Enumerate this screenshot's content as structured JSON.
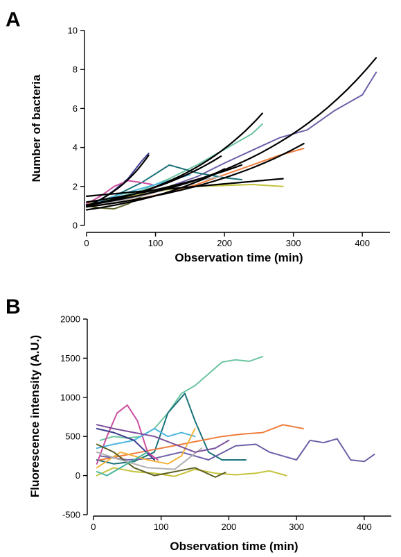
{
  "colors": [
    "#6d5fa8",
    "#f07d3c",
    "#6cc4a0",
    "#19727a",
    "#c5c23a",
    "#3d3d8f",
    "#cc4fa0",
    "#4cb7e0",
    "#f2b33c",
    "#5c5f22",
    "#b0b0b0",
    "#7b4f9c",
    "#46b59b",
    "#8a8f2f"
  ],
  "chart_data": [
    {
      "type": "line",
      "panel_label": "A",
      "xlabel": "Observation time (min)",
      "ylabel": "Number of bacteria",
      "xlim": [
        0,
        440
      ],
      "ylim": [
        0,
        10
      ],
      "xticks": [
        "0",
        "100",
        "200",
        "300",
        "400"
      ],
      "yticks": [
        "0",
        "2",
        "4",
        "6",
        "8",
        "10"
      ],
      "series": [
        {
          "color": "#6d5fa8",
          "x": [
            0,
            40,
            80,
            120,
            160,
            200,
            240,
            280,
            320,
            360,
            400,
            420
          ],
          "y": [
            1.0,
            1.25,
            1.6,
            2.0,
            2.5,
            3.2,
            3.85,
            4.5,
            4.9,
            5.9,
            6.7,
            7.85
          ]
        },
        {
          "color": "#f07d3c",
          "x": [
            0,
            40,
            80,
            120,
            160,
            200,
            240,
            280,
            315
          ],
          "y": [
            0.95,
            1.15,
            1.4,
            1.7,
            2.1,
            2.6,
            3.1,
            3.6,
            3.95
          ]
        },
        {
          "color": "#6cc4a0",
          "x": [
            0,
            40,
            80,
            120,
            160,
            200,
            240,
            255
          ],
          "y": [
            1.1,
            1.4,
            1.8,
            2.4,
            3.1,
            3.9,
            4.7,
            5.2
          ]
        },
        {
          "color": "#19727a",
          "x": [
            0,
            40,
            80,
            120,
            160,
            200,
            225
          ],
          "y": [
            1.05,
            1.5,
            2.2,
            3.1,
            2.7,
            2.45,
            2.35
          ]
        },
        {
          "color": "#c5c23a",
          "x": [
            0,
            40,
            80,
            120,
            160,
            200,
            240,
            285
          ],
          "y": [
            1.1,
            1.3,
            1.6,
            1.85,
            2.0,
            2.05,
            2.1,
            2.0
          ]
        },
        {
          "color": "#3d3d8f",
          "x": [
            0,
            20,
            40,
            60,
            80,
            90
          ],
          "y": [
            1.0,
            1.3,
            1.8,
            2.4,
            3.3,
            3.7
          ]
        },
        {
          "color": "#cc4fa0",
          "x": [
            0,
            20,
            40,
            60,
            80,
            95
          ],
          "y": [
            1.1,
            1.5,
            2.0,
            2.3,
            2.2,
            2.1
          ]
        },
        {
          "color": "#4cb7e0",
          "x": [
            0,
            40,
            80,
            120,
            150
          ],
          "y": [
            1.0,
            1.5,
            1.9,
            2.3,
            2.6
          ]
        },
        {
          "color": "#5c5f22",
          "x": [
            0,
            20,
            40,
            60,
            80,
            100,
            130
          ],
          "y": [
            1.0,
            0.9,
            0.85,
            1.1,
            1.5,
            1.8,
            2.1
          ]
        },
        {
          "color": "#b0b0b0",
          "x": [
            0,
            40,
            80,
            120,
            160,
            195
          ],
          "y": [
            1.0,
            1.2,
            1.5,
            1.9,
            2.3,
            2.5
          ]
        }
      ],
      "fits": [
        {
          "x": [
            0,
            420
          ],
          "y0": 1.05,
          "y1": 8.6,
          "shape": "exp"
        },
        {
          "x": [
            0,
            255
          ],
          "y0": 1.0,
          "y1": 5.75,
          "shape": "exp"
        },
        {
          "x": [
            0,
            315
          ],
          "y0": 0.95,
          "y1": 4.2,
          "shape": "exp"
        },
        {
          "x": [
            0,
            285
          ],
          "y0": 1.5,
          "y1": 2.4,
          "shape": "lin"
        },
        {
          "x": [
            0,
            225
          ],
          "y0": 1.2,
          "y1": 3.1,
          "shape": "exp"
        },
        {
          "x": [
            0,
            195
          ],
          "y0": 1.05,
          "y1": 3.55,
          "shape": "exp"
        },
        {
          "x": [
            0,
            90
          ],
          "y0": 1.0,
          "y1": 3.6,
          "shape": "exp"
        },
        {
          "x": [
            0,
            200
          ],
          "y0": 0.8,
          "y1": 2.9,
          "shape": "exp"
        }
      ]
    },
    {
      "type": "line",
      "panel_label": "B",
      "xlabel": "Observation time (min)",
      "ylabel": "Fluorescence intensity (A.U.)",
      "xlim": [
        -5,
        440
      ],
      "ylim": [
        -500,
        2000
      ],
      "xticks": [
        "0",
        "100",
        "200",
        "300",
        "400"
      ],
      "yticks": [
        "-500",
        "0",
        "500",
        "1000",
        "1500",
        "2000"
      ],
      "series": [
        {
          "color": "#6cc4a0",
          "x": [
            10,
            30,
            50,
            70,
            90,
            110,
            130,
            150,
            170,
            190,
            210,
            230,
            250
          ],
          "y": [
            450,
            500,
            480,
            500,
            600,
            800,
            1050,
            1150,
            1300,
            1450,
            1480,
            1460,
            1520
          ]
        },
        {
          "color": "#19727a",
          "x": [
            5,
            30,
            60,
            90,
            110,
            135,
            150,
            170,
            190,
            210,
            225
          ],
          "y": [
            200,
            150,
            180,
            300,
            800,
            1050,
            700,
            300,
            200,
            200,
            200
          ]
        },
        {
          "color": "#f07d3c",
          "x": [
            10,
            40,
            70,
            100,
            130,
            160,
            190,
            220,
            250,
            280,
            310
          ],
          "y": [
            200,
            250,
            300,
            350,
            400,
            450,
            500,
            530,
            550,
            650,
            600
          ]
        },
        {
          "color": "#6d5fa8",
          "x": [
            10,
            50,
            90,
            130,
            170,
            210,
            240,
            260,
            280,
            300,
            320,
            340,
            360,
            380,
            400,
            415
          ],
          "y": [
            250,
            200,
            220,
            300,
            200,
            380,
            400,
            300,
            250,
            200,
            450,
            420,
            470,
            200,
            180,
            270
          ]
        },
        {
          "color": "#cc4fa0",
          "x": [
            5,
            20,
            35,
            50,
            65,
            80,
            95
          ],
          "y": [
            150,
            500,
            800,
            900,
            700,
            300,
            200
          ]
        },
        {
          "color": "#4cb7e0",
          "x": [
            5,
            30,
            60,
            90,
            110,
            130,
            150
          ],
          "y": [
            350,
            400,
            450,
            600,
            500,
            550,
            500
          ]
        },
        {
          "color": "#f2b33c",
          "x": [
            5,
            40,
            80,
            110,
            130,
            150
          ],
          "y": [
            100,
            300,
            200,
            150,
            250,
            600
          ]
        },
        {
          "color": "#c5c23a",
          "x": [
            5,
            30,
            60,
            90,
            120,
            150,
            180,
            210,
            240,
            260,
            285
          ],
          "y": [
            0,
            100,
            50,
            30,
            -10,
            80,
            30,
            10,
            30,
            60,
            0
          ]
        },
        {
          "color": "#3d3d8f",
          "x": [
            5,
            30,
            60,
            90
          ],
          "y": [
            600,
            550,
            450,
            200
          ]
        },
        {
          "color": "#5c5f22",
          "x": [
            5,
            30,
            60,
            90,
            120,
            150,
            180,
            195
          ],
          "y": [
            400,
            300,
            100,
            0,
            50,
            100,
            -20,
            40
          ]
        },
        {
          "color": "#b0b0b0",
          "x": [
            5,
            40,
            80,
            120,
            160
          ],
          "y": [
            300,
            200,
            100,
            80,
            350
          ]
        },
        {
          "color": "#7b4f9c",
          "x": [
            5,
            30,
            60,
            90,
            120,
            150,
            180,
            200
          ],
          "y": [
            650,
            600,
            550,
            500,
            400,
            300,
            350,
            450
          ]
        },
        {
          "color": "#46b59b",
          "x": [
            5,
            20,
            40,
            60,
            80
          ],
          "y": [
            50,
            0,
            100,
            200,
            300
          ]
        }
      ]
    }
  ]
}
